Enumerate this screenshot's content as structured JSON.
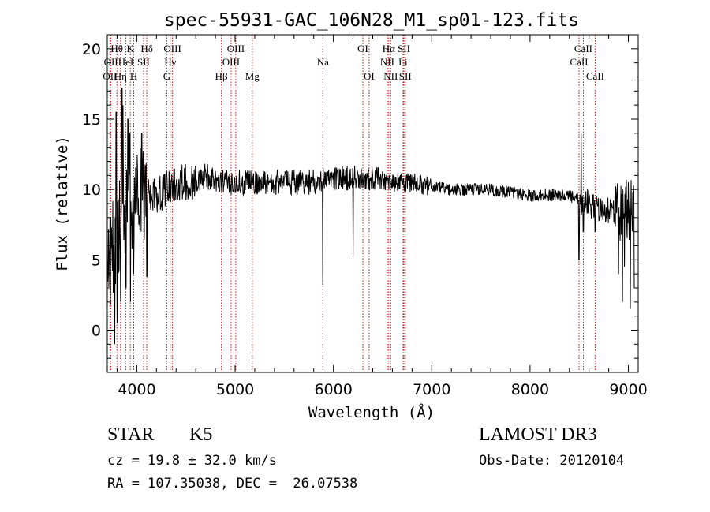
{
  "chart_data": {
    "type": "line",
    "title": "spec-55931-GAC_106N28_M1_sp01-123.fits",
    "xlabel": "Wavelength (Å)",
    "ylabel": "Flux (relative)",
    "xlim": [
      3700,
      9100
    ],
    "ylim": [
      -3,
      21
    ],
    "x_ticks": [
      4000,
      5000,
      6000,
      7000,
      8000,
      9000
    ],
    "x_tick_labels": [
      "4000",
      "5000",
      "6000",
      "7000",
      "8000",
      "9000"
    ],
    "y_ticks": [
      0,
      5,
      10,
      15,
      20
    ],
    "y_tick_labels": [
      "0",
      "5",
      "10",
      "15",
      "20"
    ],
    "series_color": "#000000",
    "line_color": "#b22222",
    "anchors": [
      [
        3700,
        2
      ],
      [
        3720,
        5
      ],
      [
        3760,
        6
      ],
      [
        3800,
        6.5
      ],
      [
        3850,
        8
      ],
      [
        3900,
        8.5
      ],
      [
        3950,
        9
      ],
      [
        4000,
        9.5
      ],
      [
        4100,
        9.5
      ],
      [
        4200,
        9.5
      ],
      [
        4300,
        10
      ],
      [
        4400,
        10.5
      ],
      [
        4500,
        10.5
      ],
      [
        4600,
        10.5
      ],
      [
        4700,
        11
      ],
      [
        4800,
        10.5
      ],
      [
        4900,
        10.5
      ],
      [
        5000,
        10.5
      ],
      [
        5200,
        10.5
      ],
      [
        5400,
        10.5
      ],
      [
        5600,
        10.5
      ],
      [
        5800,
        10.5
      ],
      [
        6000,
        10.8
      ],
      [
        6200,
        10.8
      ],
      [
        6400,
        10.8
      ],
      [
        6600,
        10.5
      ],
      [
        6800,
        10.5
      ],
      [
        7000,
        10.2
      ],
      [
        7200,
        10
      ],
      [
        7400,
        10
      ],
      [
        7600,
        10
      ],
      [
        7800,
        9.8
      ],
      [
        8000,
        9.6
      ],
      [
        8200,
        9.6
      ],
      [
        8400,
        9.5
      ],
      [
        8600,
        9
      ],
      [
        8800,
        8.5
      ],
      [
        9000,
        8.5
      ],
      [
        9100,
        8.5
      ]
    ],
    "noise_bands": [
      [
        3700,
        4100,
        3.5
      ],
      [
        4100,
        4600,
        1.3
      ],
      [
        4600,
        6500,
        0.9
      ],
      [
        6500,
        7000,
        0.7
      ],
      [
        7000,
        8500,
        0.45
      ],
      [
        8500,
        8850,
        1.0
      ],
      [
        8850,
        9100,
        2.3
      ]
    ],
    "dips": [
      [
        3733,
        1.8
      ],
      [
        3775,
        -1.0
      ],
      [
        3800,
        0.5
      ],
      [
        3835,
        2.0
      ],
      [
        3890,
        3.0
      ],
      [
        3935,
        2.0
      ],
      [
        3969,
        4.0
      ],
      [
        4102,
        3.8
      ],
      [
        5893,
        3.2
      ],
      [
        6200,
        5.2
      ],
      [
        8498,
        5.0
      ],
      [
        8542,
        7.0
      ],
      [
        8662,
        7.0
      ],
      [
        8900,
        4.0
      ],
      [
        8940,
        2.0
      ],
      [
        8960,
        4.5
      ],
      [
        9020,
        1.5
      ],
      [
        9060,
        3.0
      ]
    ],
    "peaks": [
      [
        3850,
        17.2
      ],
      [
        3790,
        15.5
      ],
      [
        3860,
        16.0
      ],
      [
        3910,
        15.0
      ],
      [
        3930,
        14.0
      ],
      [
        4050,
        14.0
      ],
      [
        8520,
        14.0
      ]
    ],
    "lines": [
      {
        "name": "OII",
        "wavelength": 3727,
        "row": 2
      },
      {
        "name": "OII",
        "wavelength": 3737,
        "row": 1
      },
      {
        "name": "Hθ",
        "wavelength": 3798,
        "row": 0
      },
      {
        "name": "Hη",
        "wavelength": 3835,
        "row": 2
      },
      {
        "name": "K",
        "wavelength": 3934,
        "row": 0
      },
      {
        "name": "HeI",
        "wavelength": 3889,
        "row": 1
      },
      {
        "name": "H",
        "wavelength": 3969,
        "row": 2
      },
      {
        "name": "SII",
        "wavelength": 4069,
        "row": 1
      },
      {
        "name": "Hδ",
        "wavelength": 4102,
        "row": 0
      },
      {
        "name": "OIII",
        "wavelength": 4363,
        "row": 0
      },
      {
        "name": "Hγ",
        "wavelength": 4340,
        "row": 1
      },
      {
        "name": "G",
        "wavelength": 4305,
        "row": 2
      },
      {
        "name": "Hβ",
        "wavelength": 4861,
        "row": 2
      },
      {
        "name": "OIII",
        "wavelength": 5007,
        "row": 0
      },
      {
        "name": "OIII",
        "wavelength": 4959,
        "row": 1
      },
      {
        "name": "Mg",
        "wavelength": 5175,
        "row": 2
      },
      {
        "name": "Na",
        "wavelength": 5893,
        "row": 1
      },
      {
        "name": "OI",
        "wavelength": 6300,
        "row": 0
      },
      {
        "name": "OI",
        "wavelength": 6363,
        "row": 2
      },
      {
        "name": "Hα",
        "wavelength": 6563,
        "row": 0
      },
      {
        "name": "NII",
        "wavelength": 6548,
        "row": 1
      },
      {
        "name": "NII",
        "wavelength": 6583,
        "row": 2
      },
      {
        "name": "SII",
        "wavelength": 6717,
        "row": 0
      },
      {
        "name": "Li",
        "wavelength": 6708,
        "row": 1
      },
      {
        "name": "SII",
        "wavelength": 6731,
        "row": 2
      },
      {
        "name": "CaII",
        "wavelength": 8498,
        "row": 1
      },
      {
        "name": "CaII",
        "wavelength": 8542,
        "row": 0
      },
      {
        "name": "CaII",
        "wavelength": 8662,
        "row": 2
      }
    ]
  },
  "info": {
    "object_class": "STAR",
    "subclass": "K5",
    "cz": "cz = 19.8 ± 32.0 km/s",
    "coords": "RA = 107.35038, DEC =  26.07538",
    "survey": "LAMOST DR3",
    "obs_date": "Obs-Date: 20120104"
  }
}
